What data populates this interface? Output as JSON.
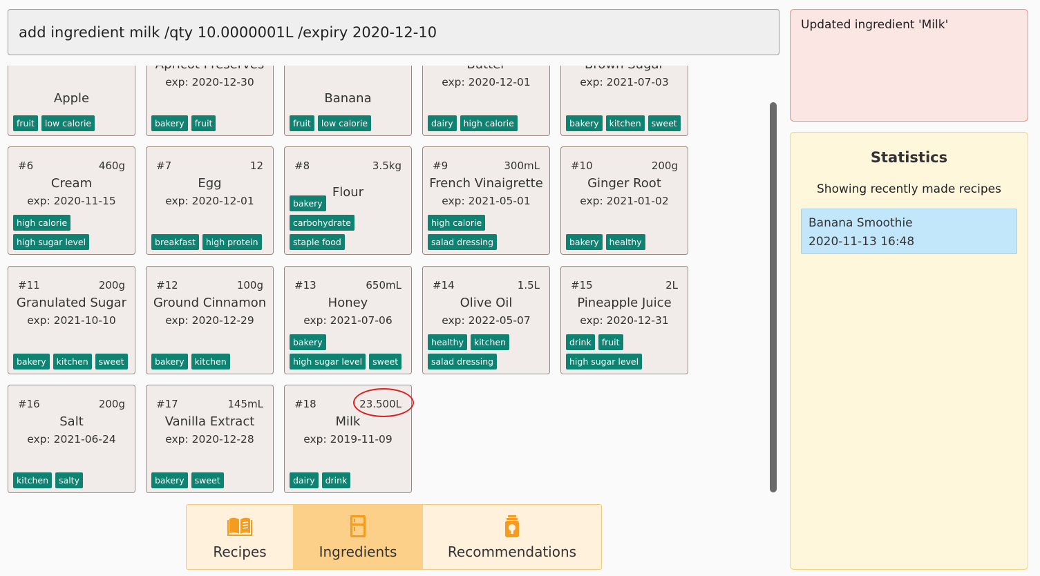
{
  "command": {
    "value": "add ingredient milk /qty 10.0000001L /expiry 2020-12-10"
  },
  "result": {
    "message": "Updated ingredient 'Milk'"
  },
  "statistics": {
    "title": "Statistics",
    "subtitle": "Showing recently made recipes",
    "recent": [
      {
        "name": "Banana Smoothie",
        "time": "2020-11-13 16:48"
      }
    ]
  },
  "tabs": [
    {
      "label": "Recipes",
      "icon": "book-icon",
      "active": false
    },
    {
      "label": "Ingredients",
      "icon": "fridge-icon",
      "active": true
    },
    {
      "label": "Recommendations",
      "icon": "lightbulb-icon",
      "active": false
    }
  ],
  "ingredients": [
    {
      "num": "",
      "qty": "",
      "name": "Apple",
      "expiry": "",
      "tags": [
        "fruit",
        "low calorie"
      ]
    },
    {
      "num": "",
      "qty": "",
      "name": "Apricot Preserves",
      "expiry": "exp: 2020-12-30",
      "tags": [
        "bakery",
        "fruit"
      ]
    },
    {
      "num": "",
      "qty": "",
      "name": "Banana",
      "expiry": "",
      "tags": [
        "fruit",
        "low calorie"
      ]
    },
    {
      "num": "",
      "qty": "",
      "name": "Butter",
      "expiry": "exp: 2020-12-01",
      "tags": [
        "dairy",
        "high calorie"
      ]
    },
    {
      "num": "",
      "qty": "",
      "name": "Brown Sugar",
      "expiry": "exp: 2021-07-03",
      "tags": [
        "bakery",
        "kitchen",
        "sweet"
      ]
    },
    {
      "num": "#6",
      "qty": "460g",
      "name": "Cream",
      "expiry": "exp: 2020-11-15",
      "tags": [
        "high calorie",
        "high sugar level"
      ]
    },
    {
      "num": "#7",
      "qty": "12",
      "name": "Egg",
      "expiry": "exp: 2020-12-01",
      "tags": [
        "breakfast",
        "high protein"
      ]
    },
    {
      "num": "#8",
      "qty": "3.5kg",
      "name": "Flour",
      "expiry": "",
      "tags": [
        "bakery",
        "carbohydrate",
        "staple food"
      ]
    },
    {
      "num": "#9",
      "qty": "300mL",
      "name": "French Vinaigrette",
      "expiry": "exp: 2021-05-01",
      "tags": [
        "high calorie",
        "salad dressing"
      ]
    },
    {
      "num": "#10",
      "qty": "200g",
      "name": "Ginger Root",
      "expiry": "exp: 2021-01-02",
      "tags": [
        "bakery",
        "healthy"
      ]
    },
    {
      "num": "#11",
      "qty": "200g",
      "name": "Granulated Sugar",
      "expiry": "exp: 2021-10-10",
      "tags": [
        "bakery",
        "kitchen",
        "sweet"
      ]
    },
    {
      "num": "#12",
      "qty": "100g",
      "name": "Ground Cinnamon",
      "expiry": "exp: 2020-12-29",
      "tags": [
        "bakery",
        "kitchen"
      ]
    },
    {
      "num": "#13",
      "qty": "650mL",
      "name": "Honey",
      "expiry": "exp: 2021-07-06",
      "tags": [
        "bakery",
        "high sugar level",
        "sweet"
      ]
    },
    {
      "num": "#14",
      "qty": "1.5L",
      "name": "Olive Oil",
      "expiry": "exp: 2022-05-07",
      "tags": [
        "healthy",
        "kitchen",
        "salad dressing"
      ]
    },
    {
      "num": "#15",
      "qty": "2L",
      "name": "Pineapple Juice",
      "expiry": "exp: 2020-12-31",
      "tags": [
        "drink",
        "fruit",
        "high sugar level"
      ]
    },
    {
      "num": "#16",
      "qty": "200g",
      "name": "Salt",
      "expiry": "exp: 2021-06-24",
      "tags": [
        "kitchen",
        "salty"
      ]
    },
    {
      "num": "#17",
      "qty": "145mL",
      "name": "Vanilla Extract",
      "expiry": "exp: 2020-12-28",
      "tags": [
        "bakery",
        "sweet"
      ]
    },
    {
      "num": "#18",
      "qty": "23.500L",
      "name": "Milk",
      "expiry": "exp: 2019-11-09",
      "tags": [
        "dairy",
        "drink"
      ]
    }
  ]
}
